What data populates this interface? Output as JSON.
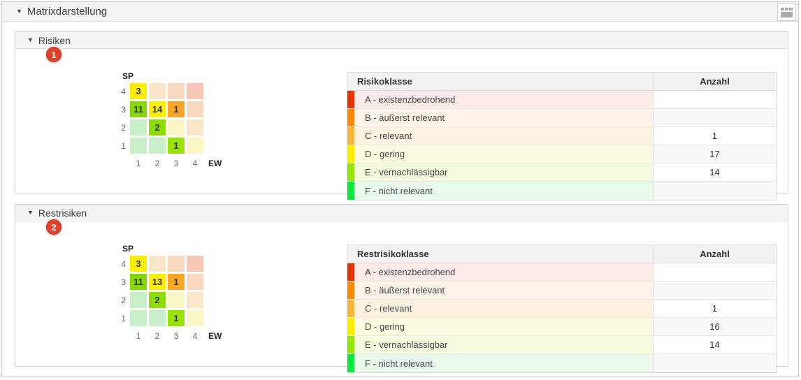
{
  "titlebar": {
    "caret": "▼",
    "title": "Matrixdarstellung"
  },
  "toolbar": {
    "gridview_icon": "matrix-grid-view-icon"
  },
  "badge_color": "#e2402b",
  "sections": [
    {
      "caret": "▼",
      "title": "Risiken",
      "badge": "1",
      "matrix": {
        "y_axis": "SP",
        "x_axis": "EW",
        "y_ticks": [
          "4",
          "3",
          "2",
          "1"
        ],
        "x_ticks": [
          "1",
          "2",
          "3",
          "4"
        ],
        "rows": [
          [
            {
              "v": "3",
              "c": "#fbee00"
            },
            {
              "v": "",
              "c": "#fae7c9"
            },
            {
              "v": "",
              "c": "#f8d9bf"
            },
            {
              "v": "",
              "c": "#f6c7b7"
            }
          ],
          [
            {
              "v": "11",
              "c": "#85d804"
            },
            {
              "v": "14",
              "c": "#fbee00"
            },
            {
              "v": "1",
              "c": "#f7a723"
            },
            {
              "v": "",
              "c": "#f8d9bf"
            }
          ],
          [
            {
              "v": "",
              "c": "#c9eeca"
            },
            {
              "v": "2",
              "c": "#8edd00"
            },
            {
              "v": "",
              "c": "#fbf6c6"
            },
            {
              "v": "",
              "c": "#fae7c9"
            }
          ],
          [
            {
              "v": "",
              "c": "#c9eeca"
            },
            {
              "v": "",
              "c": "#c9eeca"
            },
            {
              "v": "1",
              "c": "#98e204"
            },
            {
              "v": "",
              "c": "#fbf6c6"
            }
          ]
        ]
      },
      "table": {
        "headers": {
          "klass": "Risikoklasse",
          "count": "Anzahl"
        },
        "rows": [
          {
            "label": "A - existenzbedrohend",
            "count": "",
            "strip": "#e53000",
            "tint": "#fcebe9"
          },
          {
            "label": "B - äußerst relevant",
            "count": "",
            "strip": "#fd8907",
            "tint": "#fdf3e8"
          },
          {
            "label": "C - relevant",
            "count": "1",
            "strip": "#fbb53a",
            "tint": "#fcf2df"
          },
          {
            "label": "D - gering",
            "count": "17",
            "strip": "#fcee00",
            "tint": "#fcfae0"
          },
          {
            "label": "E - vernachlässigbar",
            "count": "14",
            "strip": "#93e607",
            "tint": "#f3fade"
          },
          {
            "label": "F - nicht relevant",
            "count": "",
            "strip": "#06e73c",
            "tint": "#e9f9ec"
          }
        ]
      }
    },
    {
      "caret": "▼",
      "title": "Restrisiken",
      "badge": "2",
      "matrix": {
        "y_axis": "SP",
        "x_axis": "EW",
        "y_ticks": [
          "4",
          "3",
          "2",
          "1"
        ],
        "x_ticks": [
          "1",
          "2",
          "3",
          "4"
        ],
        "rows": [
          [
            {
              "v": "3",
              "c": "#fbee00"
            },
            {
              "v": "",
              "c": "#fae7c9"
            },
            {
              "v": "",
              "c": "#f8d9bf"
            },
            {
              "v": "",
              "c": "#f6c7b7"
            }
          ],
          [
            {
              "v": "11",
              "c": "#85d804"
            },
            {
              "v": "13",
              "c": "#fbee00"
            },
            {
              "v": "1",
              "c": "#f7a723"
            },
            {
              "v": "",
              "c": "#f8d9bf"
            }
          ],
          [
            {
              "v": "",
              "c": "#c9eeca"
            },
            {
              "v": "2",
              "c": "#8edd00"
            },
            {
              "v": "",
              "c": "#fbf6c6"
            },
            {
              "v": "",
              "c": "#fae7c9"
            }
          ],
          [
            {
              "v": "",
              "c": "#c9eeca"
            },
            {
              "v": "",
              "c": "#c9eeca"
            },
            {
              "v": "1",
              "c": "#98e204"
            },
            {
              "v": "",
              "c": "#fbf6c6"
            }
          ]
        ]
      },
      "table": {
        "headers": {
          "klass": "Restrisikoklasse",
          "count": "Anzahl"
        },
        "rows": [
          {
            "label": "A - existenzbedrohend",
            "count": "",
            "strip": "#e53000",
            "tint": "#fcebe9"
          },
          {
            "label": "B - äußerst relevant",
            "count": "",
            "strip": "#fd8907",
            "tint": "#fdf3e8"
          },
          {
            "label": "C - relevant",
            "count": "1",
            "strip": "#fbb53a",
            "tint": "#fcf2df"
          },
          {
            "label": "D - gering",
            "count": "16",
            "strip": "#fcee00",
            "tint": "#fcfae0"
          },
          {
            "label": "E - vernachlässigbar",
            "count": "14",
            "strip": "#93e607",
            "tint": "#f3fade"
          },
          {
            "label": "F - nicht relevant",
            "count": "",
            "strip": "#06e73c",
            "tint": "#e9f9ec"
          }
        ]
      }
    }
  ]
}
